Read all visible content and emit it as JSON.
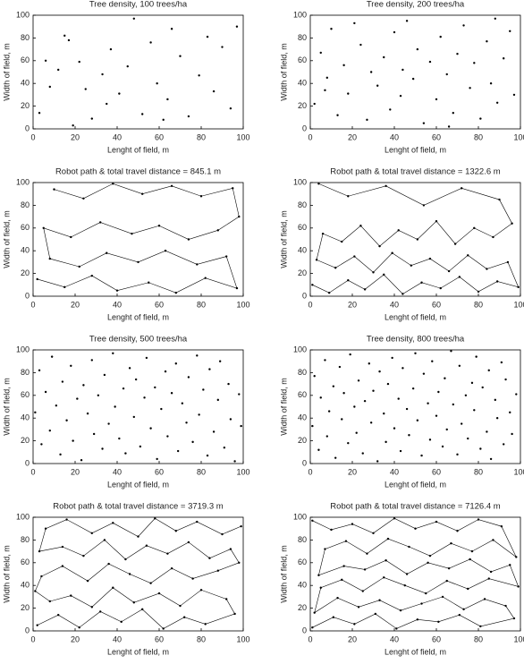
{
  "chart_data": [
    {
      "type": "scatter",
      "title": "Tree density, 100 trees/ha",
      "xlabel": "Lenght of field, m",
      "ylabel": "Width of field, m",
      "color": "#000000",
      "xlim": [
        0,
        100
      ],
      "ylim": [
        0,
        100
      ],
      "xticks": [
        0,
        20,
        40,
        60,
        80,
        100
      ],
      "yticks": [
        0,
        20,
        40,
        60,
        80,
        100
      ],
      "x": [
        3,
        6,
        8,
        15,
        17,
        19,
        22,
        25,
        28,
        33,
        35,
        37,
        41,
        45,
        48,
        52,
        56,
        59,
        62,
        66,
        70,
        74,
        79,
        83,
        86,
        90,
        94,
        97,
        12,
        64
      ],
      "values": [
        14,
        60,
        37,
        82,
        78,
        3,
        59,
        35,
        9,
        48,
        22,
        70,
        31,
        55,
        97,
        13,
        76,
        40,
        8,
        88,
        64,
        11,
        47,
        81,
        33,
        72,
        18,
        90,
        52,
        26
      ]
    },
    {
      "type": "scatter",
      "title": "Tree density, 200 trees/ha",
      "xlabel": "Lenght of field, m",
      "ylabel": "Width of field, m",
      "color": "#000000",
      "xlim": [
        0,
        100
      ],
      "ylim": [
        0,
        100
      ],
      "xticks": [
        0,
        20,
        40,
        60,
        80,
        100
      ],
      "yticks": [
        0,
        20,
        40,
        60,
        80,
        100
      ],
      "x": [
        2,
        5,
        8,
        10,
        13,
        16,
        18,
        21,
        24,
        27,
        29,
        32,
        35,
        38,
        40,
        43,
        46,
        49,
        51,
        54,
        57,
        60,
        62,
        65,
        68,
        70,
        73,
        76,
        78,
        81,
        84,
        86,
        89,
        92,
        95,
        97,
        7,
        44,
        66,
        88
      ],
      "values": [
        22,
        67,
        45,
        88,
        12,
        56,
        31,
        93,
        74,
        8,
        50,
        38,
        63,
        17,
        85,
        29,
        95,
        44,
        70,
        5,
        59,
        26,
        81,
        48,
        14,
        66,
        91,
        36,
        58,
        9,
        77,
        40,
        23,
        62,
        86,
        30,
        34,
        52,
        2,
        97
      ]
    },
    {
      "type": "line",
      "title": "Robot path & total travel distance = 845.1 m",
      "xlabel": "Lenght of field, m",
      "ylabel": "Width of field, m",
      "color": "#000000",
      "xlim": [
        0,
        100
      ],
      "ylim": [
        0,
        100
      ],
      "xticks": [
        0,
        20,
        40,
        60,
        80,
        100
      ],
      "yticks": [
        0,
        20,
        40,
        60,
        80,
        100
      ],
      "x": [
        2,
        15,
        28,
        40,
        55,
        68,
        82,
        97,
        92,
        78,
        63,
        50,
        35,
        22,
        8,
        5,
        18,
        32,
        47,
        60,
        74,
        88,
        98,
        95,
        80,
        66,
        52,
        38,
        24,
        10
      ],
      "values": [
        15,
        8,
        18,
        5,
        12,
        3,
        16,
        7,
        35,
        28,
        40,
        30,
        38,
        26,
        33,
        60,
        52,
        65,
        55,
        62,
        50,
        58,
        70,
        95,
        88,
        97,
        90,
        99,
        86,
        94
      ]
    },
    {
      "type": "line",
      "title": "Robot path & total travel distance = 1322.6 m",
      "xlabel": "Lenght of field, m",
      "ylabel": "Width of field, m",
      "color": "#000000",
      "xlim": [
        0,
        100
      ],
      "ylim": [
        0,
        100
      ],
      "xticks": [
        0,
        20,
        40,
        60,
        80,
        100
      ],
      "yticks": [
        0,
        20,
        40,
        60,
        80,
        100
      ],
      "x": [
        1,
        9,
        18,
        26,
        35,
        44,
        53,
        62,
        71,
        80,
        89,
        99,
        94,
        84,
        75,
        66,
        57,
        48,
        39,
        30,
        21,
        12,
        3,
        6,
        15,
        24,
        33,
        42,
        51,
        60,
        69,
        78,
        87,
        96,
        90,
        72,
        54,
        36,
        18,
        4
      ],
      "values": [
        10,
        3,
        14,
        6,
        19,
        2,
        12,
        7,
        17,
        4,
        13,
        8,
        30,
        24,
        36,
        22,
        33,
        27,
        38,
        21,
        35,
        25,
        32,
        55,
        48,
        62,
        44,
        58,
        50,
        66,
        46,
        60,
        52,
        64,
        85,
        95,
        80,
        97,
        88,
        99
      ]
    },
    {
      "type": "scatter",
      "title": "Tree density, 500 trees/ha",
      "xlabel": "Lenght of field, m",
      "ylabel": "Width of field, m",
      "color": "#000000",
      "xlim": [
        0,
        100
      ],
      "ylim": [
        0,
        100
      ],
      "xticks": [
        0,
        20,
        40,
        60,
        80,
        100
      ],
      "yticks": [
        0,
        20,
        40,
        60,
        80,
        100
      ],
      "x": [
        1,
        3,
        4,
        6,
        8,
        9,
        11,
        13,
        14,
        16,
        18,
        19,
        21,
        23,
        24,
        26,
        28,
        29,
        31,
        33,
        34,
        36,
        38,
        39,
        41,
        43,
        44,
        46,
        48,
        49,
        51,
        53,
        54,
        56,
        58,
        59,
        61,
        63,
        64,
        66,
        68,
        69,
        71,
        73,
        74,
        76,
        78,
        79,
        81,
        83,
        84,
        86,
        88,
        89,
        91,
        93,
        94,
        96,
        98,
        99
      ],
      "values": [
        45,
        82,
        17,
        63,
        29,
        94,
        51,
        8,
        72,
        38,
        86,
        20,
        57,
        3,
        69,
        44,
        91,
        26,
        60,
        13,
        78,
        35,
        97,
        50,
        22,
        66,
        9,
        84,
        41,
        74,
        15,
        58,
        93,
        31,
        67,
        4,
        48,
        81,
        24,
        62,
        88,
        11,
        53,
        36,
        76,
        19,
        95,
        43,
        65,
        7,
        83,
        28,
        56,
        90,
        14,
        70,
        39,
        2,
        61,
        33
      ]
    },
    {
      "type": "scatter",
      "title": "Tree density, 800 trees/ha",
      "xlabel": "Lenght of field, m",
      "ylabel": "Width of field, m",
      "color": "#000000",
      "xlim": [
        0,
        100
      ],
      "ylim": [
        0,
        100
      ],
      "xticks": [
        0,
        20,
        40,
        60,
        80,
        100
      ],
      "yticks": [
        0,
        20,
        40,
        60,
        80,
        100
      ],
      "x": [
        1,
        2,
        4,
        5,
        7,
        8,
        9,
        11,
        12,
        14,
        15,
        16,
        18,
        19,
        21,
        22,
        23,
        25,
        26,
        28,
        29,
        30,
        32,
        33,
        35,
        36,
        37,
        39,
        40,
        42,
        43,
        44,
        46,
        47,
        49,
        50,
        51,
        53,
        54,
        56,
        57,
        58,
        60,
        61,
        63,
        64,
        65,
        67,
        68,
        70,
        71,
        72,
        74,
        75,
        77,
        78,
        79,
        81,
        82,
        84,
        85,
        86,
        88,
        89,
        91,
        92,
        93,
        95,
        96,
        98
      ],
      "values": [
        33,
        77,
        12,
        58,
        91,
        24,
        46,
        68,
        5,
        85,
        39,
        62,
        18,
        96,
        50,
        27,
        73,
        9,
        55,
        88,
        36,
        64,
        2,
        81,
        44,
        19,
        70,
        93,
        31,
        57,
        11,
        84,
        48,
        25,
        66,
        97,
        38,
        7,
        79,
        53,
        21,
        90,
        42,
        63,
        15,
        75,
        30,
        99,
        52,
        8,
        86,
        35,
        60,
        22,
        71,
        47,
        94,
        13,
        67,
        28,
        82,
        4,
        56,
        40,
        89,
        17,
        74,
        45,
        26,
        61
      ]
    },
    {
      "type": "line",
      "title": "Robot path & total travel distance = 3719.3 m",
      "xlabel": "Lenght of field, m",
      "ylabel": "Width of field, m",
      "color": "#000000",
      "xlim": [
        0,
        100
      ],
      "ylim": [
        0,
        100
      ],
      "xticks": [
        0,
        20,
        40,
        60,
        80,
        100
      ],
      "yticks": [
        0,
        20,
        40,
        60,
        80,
        100
      ],
      "x": [
        2,
        12,
        22,
        32,
        42,
        52,
        62,
        72,
        82,
        96,
        92,
        80,
        70,
        60,
        48,
        38,
        28,
        18,
        8,
        1,
        4,
        14,
        26,
        36,
        46,
        56,
        66,
        76,
        88,
        98,
        94,
        84,
        74,
        64,
        54,
        44,
        34,
        24,
        14,
        3,
        6,
        16,
        28,
        38,
        50,
        58,
        68,
        78,
        90,
        99
      ],
      "values": [
        5,
        14,
        3,
        17,
        8,
        19,
        2,
        12,
        6,
        15,
        28,
        36,
        22,
        33,
        25,
        38,
        21,
        31,
        26,
        35,
        48,
        57,
        44,
        59,
        50,
        42,
        55,
        46,
        53,
        60,
        72,
        64,
        78,
        68,
        75,
        63,
        80,
        66,
        74,
        70,
        90,
        98,
        86,
        95,
        83,
        99,
        88,
        96,
        85,
        92
      ]
    },
    {
      "type": "line",
      "title": "Robot path & total travel distance = 7126.4 m",
      "xlabel": "Lenght of field, m",
      "ylabel": "Width of field, m",
      "color": "#000000",
      "xlim": [
        0,
        100
      ],
      "ylim": [
        0,
        100
      ],
      "xticks": [
        0,
        20,
        40,
        60,
        80,
        100
      ],
      "yticks": [
        0,
        20,
        40,
        60,
        80,
        100
      ],
      "x": [
        1,
        11,
        21,
        31,
        41,
        51,
        61,
        71,
        81,
        97,
        93,
        83,
        73,
        63,
        53,
        43,
        33,
        23,
        13,
        2,
        5,
        15,
        25,
        35,
        45,
        55,
        65,
        75,
        85,
        99,
        95,
        86,
        76,
        66,
        56,
        46,
        36,
        26,
        16,
        4,
        7,
        17,
        27,
        37,
        47,
        57,
        67,
        77,
        87,
        98,
        91,
        80,
        70,
        60,
        50,
        40,
        30,
        20,
        10,
        1
      ],
      "values": [
        3,
        12,
        6,
        15,
        2,
        10,
        8,
        14,
        4,
        11,
        22,
        28,
        19,
        30,
        24,
        18,
        27,
        21,
        29,
        16,
        38,
        45,
        35,
        47,
        40,
        33,
        44,
        37,
        46,
        39,
        58,
        52,
        63,
        55,
        60,
        50,
        62,
        54,
        57,
        49,
        72,
        79,
        68,
        81,
        74,
        66,
        77,
        70,
        80,
        65,
        92,
        98,
        88,
        96,
        90,
        99,
        86,
        94,
        89,
        97
      ]
    }
  ]
}
